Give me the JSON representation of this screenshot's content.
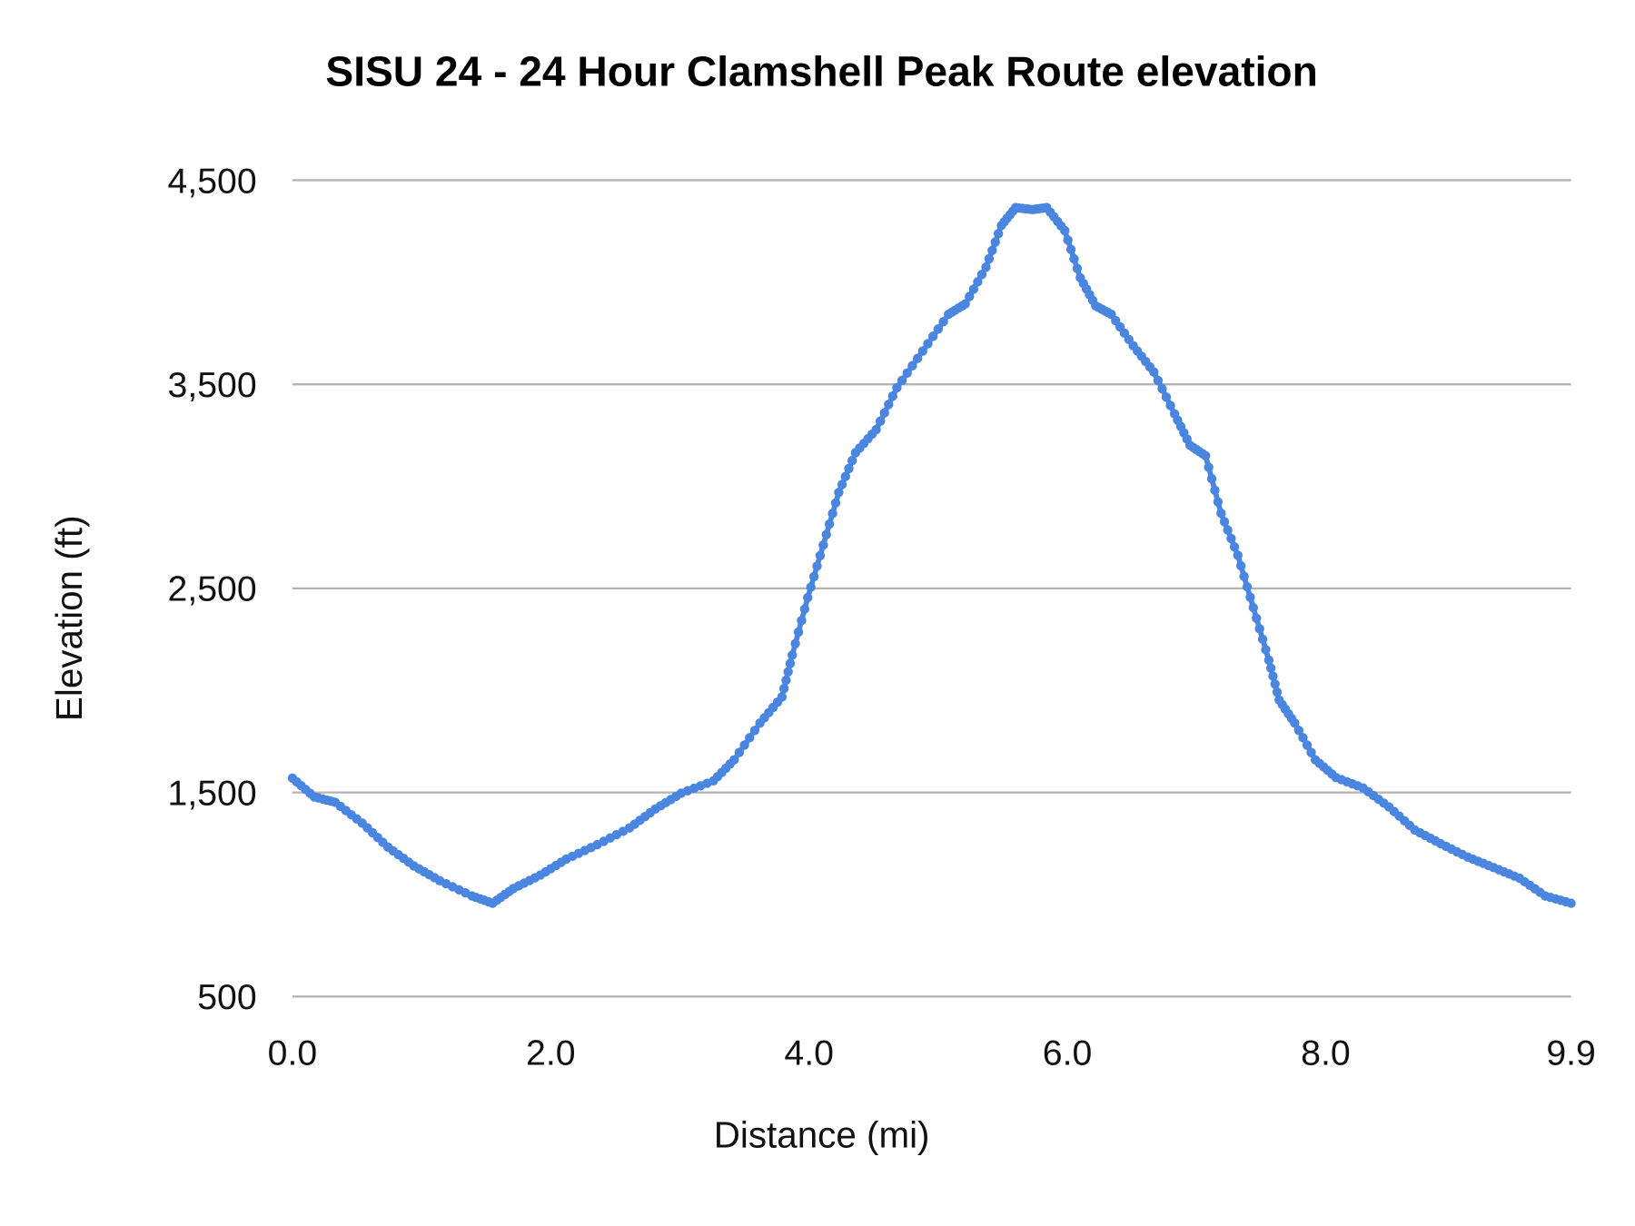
{
  "chart_data": {
    "type": "line",
    "title": "SISU 24  - 24 Hour Clamshell Peak Route elevation",
    "xlabel": "Distance (mi)",
    "ylabel": "Elevation (ft)",
    "xlim": [
      0,
      9.9
    ],
    "ylim": [
      500,
      4500
    ],
    "x_ticks": [
      "0.0",
      "2.0",
      "4.0",
      "6.0",
      "8.0",
      "9.9"
    ],
    "x_tick_values": [
      0,
      2,
      4,
      6,
      8,
      9.9
    ],
    "y_ticks": [
      "500",
      "1,500",
      "2,500",
      "3,500",
      "4,500"
    ],
    "y_tick_values": [
      500,
      1500,
      2500,
      3500,
      4500
    ],
    "grid": "horizontal",
    "legend": "none",
    "series_color": "#4a86e0",
    "series": [
      {
        "x": [
          0,
          0.17,
          0.33,
          0.54,
          0.74,
          0.94,
          1.14,
          1.39,
          1.55,
          1.71,
          1.92,
          2.12,
          2.36,
          2.61,
          2.81,
          3.01,
          3.26,
          3.42,
          3.62,
          3.79,
          3.87,
          3.99,
          4.11,
          4.23,
          4.36,
          4.52,
          4.68,
          4.88,
          5.08,
          5.21,
          5.37,
          5.49,
          5.6,
          5.73,
          5.84,
          5.98,
          6.1,
          6.22,
          6.34,
          6.51,
          6.67,
          6.83,
          6.95,
          7.07,
          7.19,
          7.32,
          7.44,
          7.56,
          7.64,
          7.76,
          7.92,
          8.08,
          8.29,
          8.49,
          8.69,
          8.89,
          9.1,
          9.3,
          9.5,
          9.7,
          9.9
        ],
        "y": [
          1570,
          1478,
          1452,
          1350,
          1232,
          1140,
          1068,
          993,
          957,
          1029,
          1095,
          1173,
          1244,
          1326,
          1419,
          1496,
          1557,
          1660,
          1840,
          1968,
          2173,
          2455,
          2712,
          2970,
          3165,
          3278,
          3483,
          3663,
          3843,
          3894,
          4074,
          4279,
          4366,
          4356,
          4366,
          4253,
          4022,
          3884,
          3843,
          3689,
          3560,
          3355,
          3201,
          3150,
          2868,
          2662,
          2405,
          2148,
          1953,
          1840,
          1660,
          1573,
          1522,
          1429,
          1316,
          1249,
          1183,
          1132,
          1080,
          993,
          957
        ]
      }
    ]
  }
}
